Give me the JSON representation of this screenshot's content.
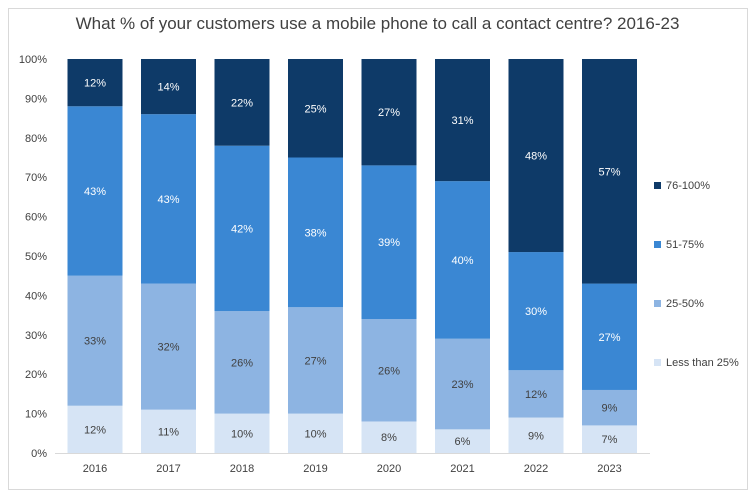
{
  "chart_data": {
    "type": "bar",
    "stacked": true,
    "title": "What % of your customers use a mobile phone to call a contact centre? 2016-23",
    "categories": [
      "2016",
      "2017",
      "2018",
      "2019",
      "2020",
      "2021",
      "2022",
      "2023"
    ],
    "ylim": [
      0,
      100
    ],
    "yticks": [
      "0%",
      "10%",
      "20%",
      "30%",
      "40%",
      "50%",
      "60%",
      "70%",
      "80%",
      "90%",
      "100%"
    ],
    "legend_position": "right",
    "series": [
      {
        "name": "Less than 25%",
        "color": "#d6e4f5",
        "label_color": "#404040",
        "values": [
          12,
          11,
          10,
          10,
          8,
          6,
          9,
          7
        ]
      },
      {
        "name": "25-50%",
        "color": "#8db4e2",
        "label_color": "#404040",
        "values": [
          33,
          32,
          26,
          27,
          26,
          23,
          12,
          9
        ]
      },
      {
        "name": "51-75%",
        "color": "#3a87d3",
        "label_color": "#ffffff",
        "values": [
          43,
          43,
          42,
          38,
          39,
          40,
          30,
          27
        ]
      },
      {
        "name": "76-100%",
        "color": "#0e3a68",
        "label_color": "#ffffff",
        "values": [
          12,
          14,
          22,
          25,
          27,
          31,
          48,
          57
        ]
      }
    ]
  }
}
